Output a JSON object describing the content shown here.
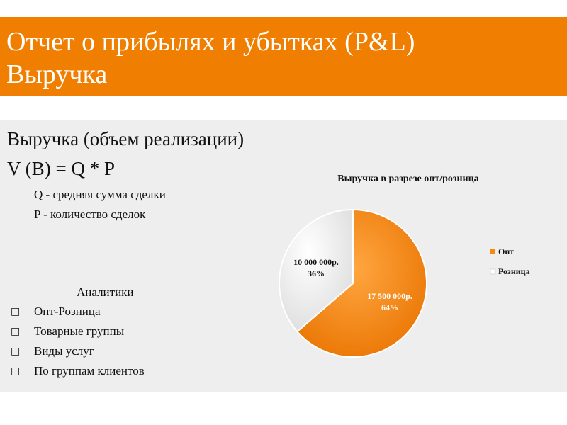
{
  "header": {
    "title_line1": "Отчет о прибылях и убытках (P&L)",
    "title_line2": "Выручка"
  },
  "main": {
    "heading": "Выручка (объем реализации)",
    "formula": "V (B) = Q * P",
    "definitions": [
      "Q - средняя сумма сделки",
      "P - количество сделок"
    ],
    "analytics_title": "Аналитики",
    "analytics": [
      "Опт-Розница",
      "Товарные группы",
      "Виды услуг",
      "По группам клиентов"
    ]
  },
  "colors": {
    "accent": "#f07e00",
    "slice_opt": "#f58a0f",
    "slice_retail": "#ffffff",
    "content_bg": "#eeeeee"
  },
  "chart_data": {
    "type": "pie",
    "title": "Выручка в разрезе опт/розница",
    "categories": [
      "Опт",
      "Розница"
    ],
    "values": [
      17500000,
      10000000
    ],
    "labels": [
      "17 500 000р.",
      "10 000 000р."
    ],
    "percent_labels": [
      "64%",
      "36%"
    ],
    "legend": "right"
  }
}
